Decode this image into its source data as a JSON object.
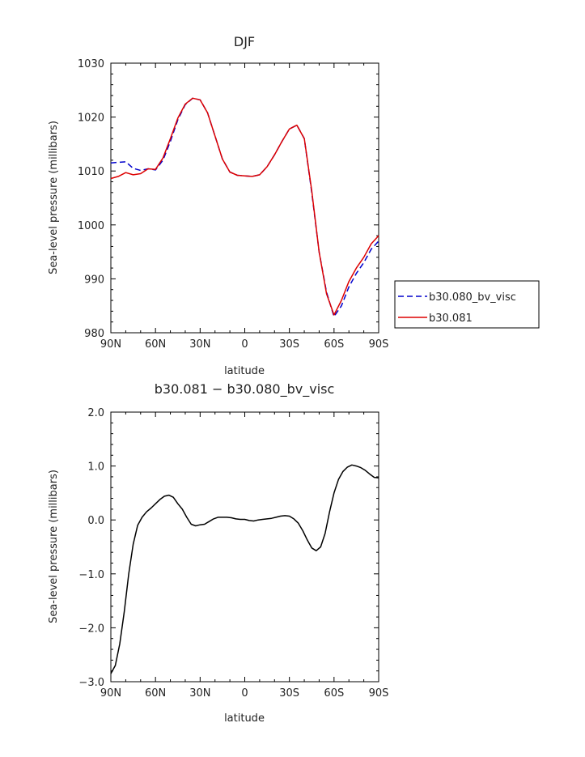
{
  "chart_data": [
    {
      "type": "line",
      "title": "DJF",
      "xlabel": "latitude",
      "ylabel": "Sea-level pressure (millibars)",
      "xlim": [
        -90,
        90
      ],
      "ylim": [
        980,
        1030
      ],
      "x_tick_values": [
        -90,
        -60,
        -30,
        0,
        30,
        60,
        90
      ],
      "x_tick_labels": [
        "90N",
        "60N",
        "30N",
        "0",
        "30S",
        "60S",
        "90S"
      ],
      "y_tick_values": [
        980,
        990,
        1000,
        1010,
        1020,
        1030
      ],
      "y_tick_labels": [
        "980",
        "990",
        "1000",
        "1010",
        "1020",
        "1030"
      ],
      "legend_position": "right",
      "grid": false,
      "series": [
        {
          "name": "b30.080_bv_visc",
          "color": "#0000cc",
          "style": "dashed",
          "x": [
            -90,
            -85,
            -80,
            -75,
            -70,
            -65,
            -60,
            -55,
            -50,
            -45,
            -40,
            -35,
            -30,
            -25,
            -20,
            -15,
            -10,
            -5,
            0,
            5,
            10,
            15,
            20,
            25,
            30,
            35,
            40,
            45,
            50,
            55,
            60,
            65,
            70,
            75,
            80,
            85,
            90
          ],
          "y": [
            1011.5,
            1011.6,
            1011.7,
            1010.5,
            1010.1,
            1010.4,
            1010.2,
            1012.0,
            1015.5,
            1019.5,
            1022.3,
            1023.5,
            1023.2,
            1020.8,
            1016.5,
            1012.2,
            1009.8,
            1009.2,
            1009.1,
            1009.0,
            1009.3,
            1010.8,
            1013.0,
            1015.5,
            1017.8,
            1018.5,
            1016.0,
            1006.0,
            995.0,
            987.5,
            983.0,
            985.0,
            988.5,
            991.0,
            993.0,
            995.5,
            997.0
          ]
        },
        {
          "name": "b30.081",
          "color": "#dd0000",
          "style": "solid",
          "x": [
            -90,
            -85,
            -80,
            -75,
            -70,
            -65,
            -60,
            -55,
            -50,
            -45,
            -40,
            -35,
            -30,
            -25,
            -20,
            -15,
            -10,
            -5,
            0,
            5,
            10,
            15,
            20,
            25,
            30,
            35,
            40,
            45,
            50,
            55,
            60,
            65,
            70,
            75,
            80,
            85,
            90
          ],
          "y": [
            1008.6,
            1009.0,
            1009.7,
            1009.3,
            1009.5,
            1010.4,
            1010.3,
            1012.4,
            1016.0,
            1019.8,
            1022.4,
            1023.5,
            1023.2,
            1020.8,
            1016.5,
            1012.2,
            1009.8,
            1009.2,
            1009.1,
            1009.0,
            1009.3,
            1010.8,
            1013.0,
            1015.5,
            1017.8,
            1018.5,
            1016.0,
            1006.3,
            995.0,
            987.2,
            983.3,
            986.0,
            989.5,
            992.0,
            994.0,
            996.5,
            998.0
          ]
        }
      ]
    },
    {
      "type": "line",
      "title": "b30.081 − b30.080_bv_visc",
      "xlabel": "latitude",
      "ylabel": "Sea-level pressure (millibars)",
      "xlim": [
        -90,
        90
      ],
      "ylim": [
        -3.0,
        2.0
      ],
      "x_tick_values": [
        -90,
        -60,
        -30,
        0,
        30,
        60,
        90
      ],
      "x_tick_labels": [
        "90N",
        "60N",
        "30N",
        "0",
        "30S",
        "60S",
        "90S"
      ],
      "y_tick_values": [
        -3,
        -2,
        -1,
        0,
        1,
        2
      ],
      "y_tick_labels": [
        "−3.0",
        "−2.0",
        "−1.0",
        "0.0",
        "1.0",
        "2.0"
      ],
      "grid": false,
      "series": [
        {
          "color": "#000000",
          "style": "solid",
          "x": [
            -90,
            -87,
            -84,
            -81,
            -78,
            -75,
            -72,
            -69,
            -66,
            -63,
            -60,
            -57,
            -54,
            -51,
            -48,
            -45,
            -42,
            -39,
            -36,
            -33,
            -30,
            -27,
            -24,
            -21,
            -18,
            -15,
            -12,
            -9,
            -6,
            -3,
            0,
            3,
            6,
            9,
            12,
            15,
            18,
            21,
            24,
            27,
            30,
            33,
            36,
            39,
            42,
            45,
            48,
            51,
            54,
            57,
            60,
            63,
            66,
            69,
            72,
            75,
            78,
            81,
            84,
            87,
            90
          ],
          "y": [
            -2.85,
            -2.7,
            -2.3,
            -1.7,
            -1.0,
            -0.45,
            -0.1,
            0.05,
            0.15,
            0.22,
            0.3,
            0.38,
            0.44,
            0.46,
            0.42,
            0.3,
            0.2,
            0.05,
            -0.08,
            -0.11,
            -0.09,
            -0.08,
            -0.03,
            0.02,
            0.05,
            0.05,
            0.05,
            0.04,
            0.02,
            0.01,
            0.01,
            -0.01,
            -0.02,
            0.0,
            0.01,
            0.02,
            0.03,
            0.05,
            0.07,
            0.08,
            0.07,
            0.02,
            -0.06,
            -0.2,
            -0.37,
            -0.52,
            -0.57,
            -0.5,
            -0.25,
            0.15,
            0.5,
            0.75,
            0.9,
            0.98,
            1.02,
            1.0,
            0.97,
            0.92,
            0.85,
            0.79,
            0.78
          ]
        }
      ]
    }
  ]
}
